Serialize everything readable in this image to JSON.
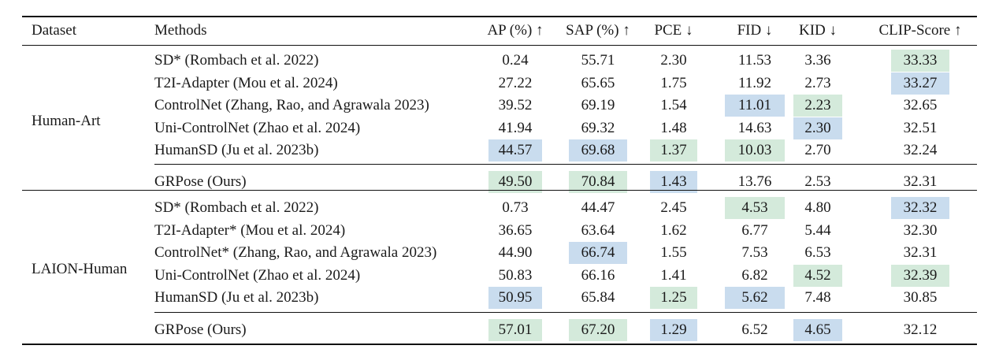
{
  "colors": {
    "best": "#d4eadb",
    "second": "#c9dcee"
  },
  "header": [
    "Dataset",
    "Methods",
    "AP (%) ↑",
    "SAP (%) ↑",
    "PCE ↓",
    "FID ↓",
    "KID ↓",
    "CLIP-Score ↑"
  ],
  "groups": [
    {
      "dataset": "Human-Art",
      "rows": [
        {
          "method": "SD* (Rombach et al. 2022)",
          "values": [
            "0.24",
            "55.71",
            "2.30",
            "11.53",
            "3.36",
            "33.33"
          ],
          "highlight": [
            null,
            null,
            null,
            null,
            null,
            "best"
          ]
        },
        {
          "method": "T2I-Adapter (Mou et al. 2024)",
          "values": [
            "27.22",
            "65.65",
            "1.75",
            "11.92",
            "2.73",
            "33.27"
          ],
          "highlight": [
            null,
            null,
            null,
            null,
            null,
            "second"
          ]
        },
        {
          "method": "ControlNet (Zhang, Rao, and Agrawala 2023)",
          "values": [
            "39.52",
            "69.19",
            "1.54",
            "11.01",
            "2.23",
            "32.65"
          ],
          "highlight": [
            null,
            null,
            null,
            "second",
            "best",
            null
          ]
        },
        {
          "method": "Uni-ControlNet (Zhao et al. 2024)",
          "values": [
            "41.94",
            "69.32",
            "1.48",
            "14.63",
            "2.30",
            "32.51"
          ],
          "highlight": [
            null,
            null,
            null,
            null,
            "second",
            null
          ]
        },
        {
          "method": "HumanSD (Ju et al. 2023b)",
          "values": [
            "44.57",
            "69.68",
            "1.37",
            "10.03",
            "2.70",
            "32.24"
          ],
          "highlight": [
            "second",
            "second",
            "best",
            "best",
            null,
            null
          ]
        }
      ],
      "ours": {
        "method": "GRPose (Ours)",
        "values": [
          "49.50",
          "70.84",
          "1.43",
          "13.76",
          "2.53",
          "32.31"
        ],
        "highlight": [
          "best",
          "best",
          "second",
          null,
          null,
          null
        ]
      }
    },
    {
      "dataset": "LAION-Human",
      "rows": [
        {
          "method": "SD* (Rombach et al. 2022)",
          "values": [
            "0.73",
            "44.47",
            "2.45",
            "4.53",
            "4.80",
            "32.32"
          ],
          "highlight": [
            null,
            null,
            null,
            "best",
            null,
            "second"
          ]
        },
        {
          "method": "T2I-Adapter* (Mou et al. 2024)",
          "values": [
            "36.65",
            "63.64",
            "1.62",
            "6.77",
            "5.44",
            "32.30"
          ],
          "highlight": [
            null,
            null,
            null,
            null,
            null,
            null
          ]
        },
        {
          "method": "ControlNet* (Zhang, Rao, and Agrawala 2023)",
          "values": [
            "44.90",
            "66.74",
            "1.55",
            "7.53",
            "6.53",
            "32.31"
          ],
          "highlight": [
            null,
            "second",
            null,
            null,
            null,
            null
          ]
        },
        {
          "method": "Uni-ControlNet (Zhao et al. 2024)",
          "values": [
            "50.83",
            "66.16",
            "1.41",
            "6.82",
            "4.52",
            "32.39"
          ],
          "highlight": [
            null,
            null,
            null,
            null,
            "best",
            "best"
          ]
        },
        {
          "method": "HumanSD (Ju et al. 2023b)",
          "values": [
            "50.95",
            "65.84",
            "1.25",
            "5.62",
            "7.48",
            "30.85"
          ],
          "highlight": [
            "second",
            null,
            "best",
            "second",
            null,
            null
          ]
        }
      ],
      "ours": {
        "method": "GRPose (Ours)",
        "values": [
          "57.01",
          "67.20",
          "1.29",
          "6.52",
          "4.65",
          "32.12"
        ],
        "highlight": [
          "best",
          "best",
          "second",
          null,
          "second",
          null
        ]
      }
    }
  ]
}
